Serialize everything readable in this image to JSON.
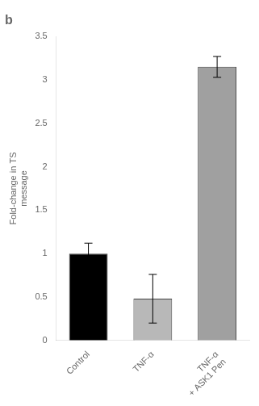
{
  "chart_data": {
    "type": "bar",
    "title": "b",
    "categories": [
      "Control",
      "TNF-α",
      "TNF-α\n+ ASK1 Pen"
    ],
    "values": [
      1.0,
      0.48,
      3.15
    ],
    "errors": [
      0.12,
      0.28,
      0.12
    ],
    "colors": [
      "#000000",
      "#b8b8b8",
      "#a0a0a0"
    ],
    "ylabel": "Fold-change in TS\nmessage",
    "ylim": [
      0,
      3.5
    ],
    "yticks": [
      0,
      0.5,
      1,
      1.5,
      2,
      2.5,
      3,
      3.5
    ],
    "grid": false
  }
}
